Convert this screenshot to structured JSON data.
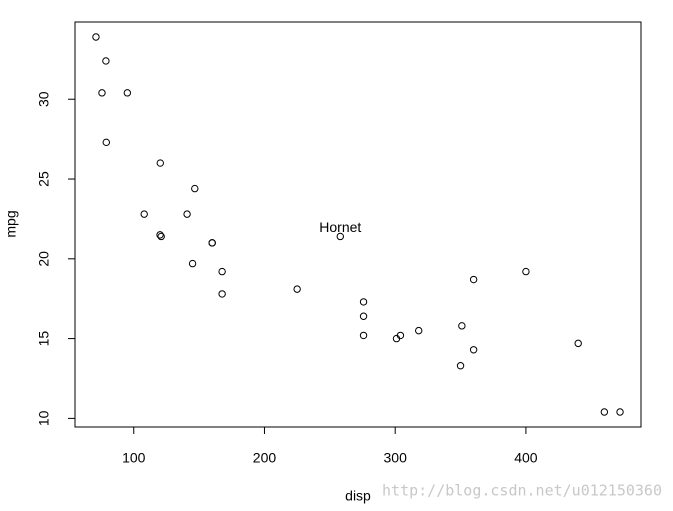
{
  "chart_data": {
    "type": "scatter",
    "x_label": "disp",
    "y_label": "mpg",
    "x": [
      160,
      160,
      108,
      258,
      360,
      225,
      360,
      146.7,
      140.8,
      167.6,
      167.6,
      275.8,
      275.8,
      275.8,
      472,
      460,
      440,
      78.7,
      75.7,
      71.1,
      120.1,
      318,
      304,
      350,
      400,
      79,
      120.3,
      95.1,
      351,
      145,
      301,
      121
    ],
    "values": [
      21,
      21,
      22.8,
      21.4,
      18.7,
      18.1,
      14.3,
      24.4,
      22.8,
      19.2,
      17.8,
      16.4,
      17.3,
      15.2,
      10.4,
      10.4,
      14.7,
      32.4,
      30.4,
      33.9,
      21.5,
      15.5,
      15.2,
      13.3,
      19.2,
      27.3,
      26,
      30.4,
      15.8,
      19.7,
      15,
      21.4
    ],
    "color": "#000000",
    "xlim": [
      55.06,
      488.04
    ],
    "ylim": [
      9.46,
      34.84
    ],
    "xticks": [
      100,
      200,
      300,
      400
    ],
    "yticks": [
      10,
      15,
      20,
      25,
      30
    ],
    "annotations": [
      {
        "text": "Hornet",
        "x": 258,
        "y": 21.9
      }
    ],
    "grid": false
  },
  "watermark": "http://blog.csdn.net/u012150360"
}
